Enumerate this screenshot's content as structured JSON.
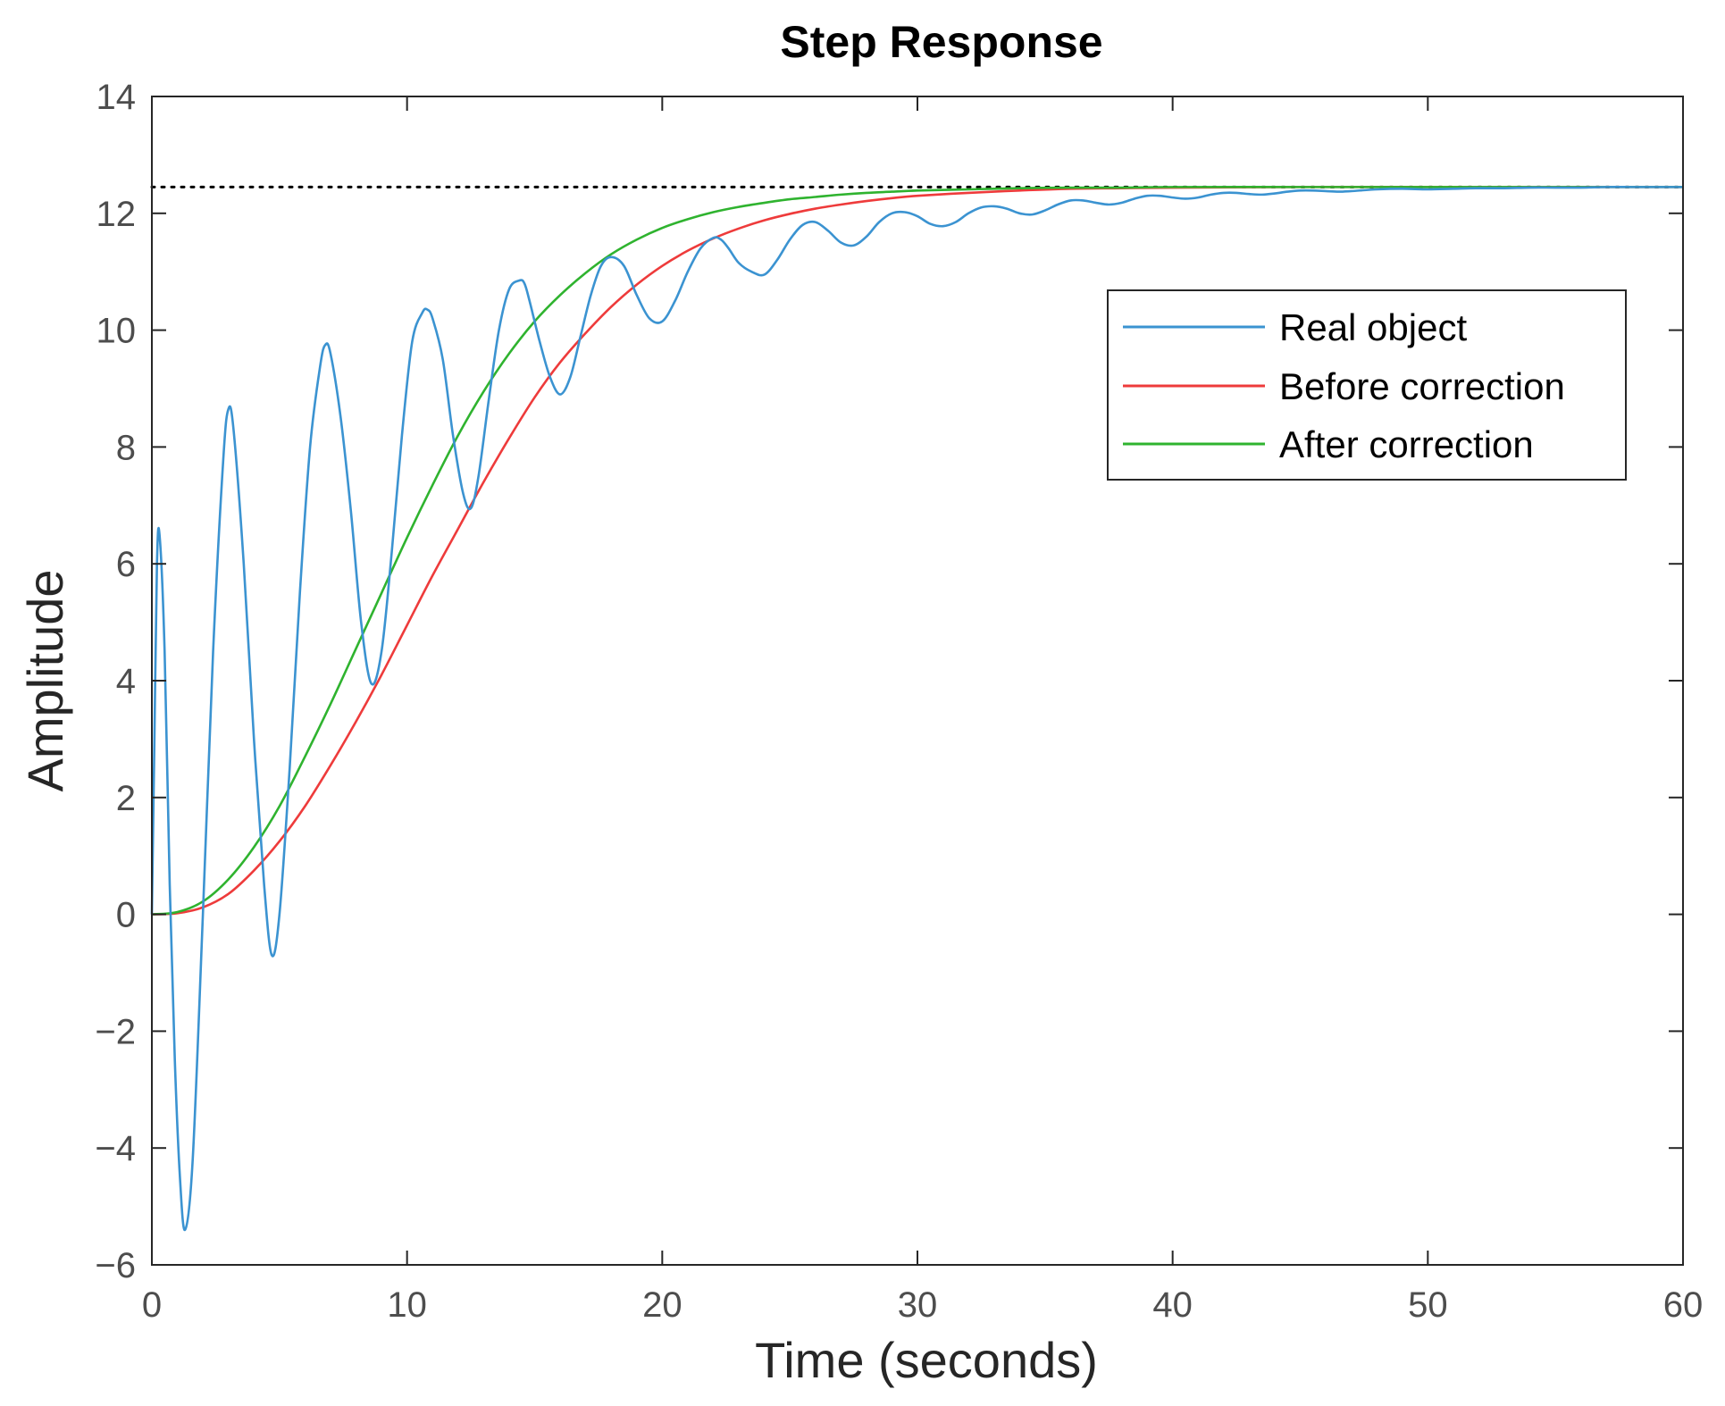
{
  "chart_data": {
    "type": "line",
    "title": "Step Response",
    "xlabel": "Time (seconds)",
    "ylabel": "Amplitude",
    "xlim": [
      0,
      60
    ],
    "ylim": [
      -6,
      14
    ],
    "xticks": [
      0,
      10,
      20,
      30,
      40,
      50,
      60
    ],
    "xtick_labels": [
      "0",
      "10",
      "20",
      "30",
      "40",
      "50",
      "60"
    ],
    "yticks": [
      -6,
      -4,
      -2,
      0,
      2,
      4,
      6,
      8,
      10,
      12,
      14
    ],
    "ytick_labels": [
      "−6",
      "−4",
      "−2",
      "0",
      "2",
      "4",
      "6",
      "8",
      "10",
      "12",
      "14"
    ],
    "grid": false,
    "steady_state": 12.45,
    "legend": {
      "position": "upper-right-inside"
    },
    "series": [
      {
        "name": "Real object",
        "color": "#3b93d1",
        "x": [
          0,
          0.1,
          0.2,
          0.3,
          0.5,
          0.7,
          0.9,
          1.1,
          1.3,
          1.6,
          2.0,
          2.4,
          2.8,
          3.0,
          3.2,
          3.6,
          4.0,
          4.4,
          4.7,
          5.0,
          5.4,
          5.8,
          6.2,
          6.6,
          6.8,
          7.0,
          7.4,
          7.8,
          8.2,
          8.6,
          9.0,
          9.4,
          9.8,
          10.2,
          10.6,
          10.8,
          11.0,
          11.4,
          11.8,
          12.2,
          12.5,
          12.8,
          13.2,
          13.6,
          14.0,
          14.4,
          14.6,
          14.8,
          15.2,
          15.6,
          16.0,
          16.4,
          16.8,
          17.2,
          17.6,
          18.0,
          18.5,
          19.0,
          19.5,
          20.0,
          20.5,
          21.0,
          21.5,
          22.0,
          22.3,
          22.6,
          23.0,
          23.5,
          24.0,
          24.5,
          25.0,
          25.5,
          26.0,
          26.5,
          27.0,
          27.5,
          28.0,
          28.5,
          29.0,
          29.5,
          30.0,
          30.5,
          31.0,
          31.5,
          32.0,
          32.5,
          33.0,
          33.5,
          34.0,
          34.5,
          35.0,
          35.5,
          36.0,
          36.5,
          37.0,
          37.5,
          38.0,
          38.5,
          39.0,
          39.5,
          40.0,
          40.5,
          41.0,
          41.5,
          42.0,
          42.5,
          43.0,
          43.5,
          44.0,
          44.5,
          45.0,
          45.5,
          46.0,
          46.5,
          47.0,
          48.0,
          49.0,
          50.0,
          51.0,
          52.0,
          53.0,
          54.0,
          55.0,
          56.0,
          57.0,
          58.0,
          59.0,
          60.0
        ],
        "y": [
          0,
          3.0,
          6.0,
          6.5,
          4.5,
          0.5,
          -2.5,
          -4.5,
          -5.4,
          -4.2,
          0.0,
          4.5,
          7.8,
          8.65,
          8.3,
          6.0,
          3.0,
          0.5,
          -0.7,
          0.0,
          2.5,
          5.5,
          8.0,
          9.4,
          9.75,
          9.6,
          8.5,
          6.9,
          5.0,
          3.95,
          4.5,
          6.2,
          8.2,
          9.8,
          10.3,
          10.35,
          10.2,
          9.5,
          8.2,
          7.2,
          6.95,
          7.5,
          8.8,
          10.0,
          10.7,
          10.85,
          10.8,
          10.5,
          9.8,
          9.2,
          8.9,
          9.2,
          9.9,
          10.6,
          11.1,
          11.25,
          11.1,
          10.6,
          10.2,
          10.15,
          10.5,
          11.0,
          11.4,
          11.58,
          11.55,
          11.4,
          11.15,
          11.0,
          10.95,
          11.2,
          11.55,
          11.8,
          11.85,
          11.7,
          11.5,
          11.45,
          11.6,
          11.85,
          12.0,
          12.02,
          11.95,
          11.82,
          11.78,
          11.85,
          12.0,
          12.1,
          12.12,
          12.08,
          12.0,
          11.98,
          12.05,
          12.15,
          12.22,
          12.22,
          12.18,
          12.15,
          12.18,
          12.25,
          12.3,
          12.3,
          12.27,
          12.25,
          12.27,
          12.32,
          12.35,
          12.35,
          12.33,
          12.32,
          12.34,
          12.37,
          12.39,
          12.39,
          12.38,
          12.37,
          12.38,
          12.41,
          12.42,
          12.41,
          12.42,
          12.43,
          12.43,
          12.44,
          12.44,
          12.44,
          12.45,
          12.45,
          12.45,
          12.45
        ]
      },
      {
        "name": "Before correction",
        "color": "#ee3b3b",
        "x": [
          0,
          1,
          2,
          3,
          4,
          5,
          6,
          7,
          8,
          9,
          10,
          11,
          12,
          13,
          14,
          15,
          16,
          17,
          18,
          19,
          20,
          21,
          22,
          23,
          24,
          25,
          26,
          27,
          28,
          29,
          30,
          32,
          34,
          36,
          38,
          40,
          45,
          50,
          55,
          60
        ],
        "y": [
          0,
          0.02,
          0.12,
          0.35,
          0.75,
          1.25,
          1.85,
          2.55,
          3.3,
          4.1,
          4.95,
          5.8,
          6.6,
          7.4,
          8.15,
          8.85,
          9.45,
          9.95,
          10.4,
          10.78,
          11.1,
          11.36,
          11.57,
          11.74,
          11.88,
          11.99,
          12.08,
          12.15,
          12.21,
          12.26,
          12.3,
          12.35,
          12.39,
          12.42,
          12.43,
          12.44,
          12.45,
          12.45,
          12.45,
          12.45
        ]
      },
      {
        "name": "After correction",
        "color": "#2fb32f",
        "x": [
          0,
          1,
          2,
          3,
          4,
          5,
          6,
          7,
          8,
          9,
          10,
          11,
          12,
          13,
          14,
          15,
          16,
          17,
          18,
          19,
          20,
          21,
          22,
          23,
          24,
          25,
          26,
          27,
          28,
          29,
          30,
          32,
          34,
          36,
          38,
          40,
          45,
          50,
          55,
          60
        ],
        "y": [
          0,
          0.04,
          0.22,
          0.6,
          1.15,
          1.85,
          2.7,
          3.6,
          4.55,
          5.5,
          6.45,
          7.35,
          8.2,
          8.95,
          9.6,
          10.15,
          10.6,
          10.98,
          11.3,
          11.55,
          11.75,
          11.9,
          12.02,
          12.11,
          12.18,
          12.24,
          12.28,
          12.32,
          12.35,
          12.37,
          12.39,
          12.41,
          12.43,
          12.44,
          12.44,
          12.45,
          12.45,
          12.45,
          12.45,
          12.45
        ]
      }
    ]
  }
}
